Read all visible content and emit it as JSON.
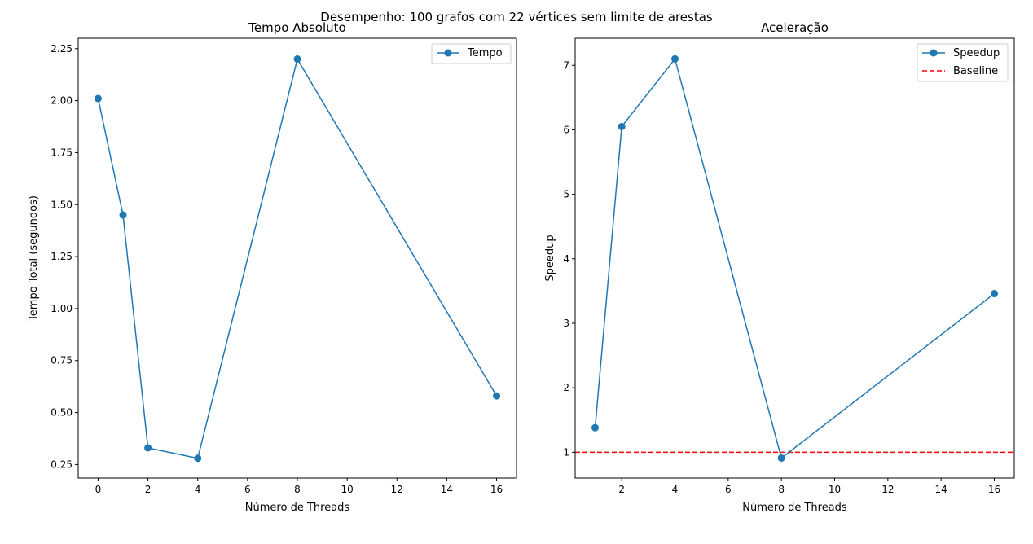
{
  "figure": {
    "suptitle": "Desempenho: 100 grafos com 22 vértices sem limite de arestas"
  },
  "colors": {
    "series": "#1f77b4",
    "baseline": "#ff0000",
    "axes": "#000000",
    "background": "#ffffff"
  },
  "chart_data": [
    {
      "type": "line",
      "title": "Tempo Absoluto",
      "xlabel": "Número de Threads",
      "ylabel": "Tempo Total (segundos)",
      "xlim": [
        -0.8,
        16.8
      ],
      "ylim": [
        0.185,
        2.3
      ],
      "xticks": [
        0,
        2,
        4,
        6,
        8,
        10,
        12,
        14,
        16
      ],
      "xtick_labels": [
        "0",
        "2",
        "4",
        "6",
        "8",
        "10",
        "12",
        "14",
        "16"
      ],
      "yticks": [
        0.25,
        0.5,
        0.75,
        1.0,
        1.25,
        1.5,
        1.75,
        2.0,
        2.25
      ],
      "ytick_labels": [
        "0.25",
        "0.50",
        "0.75",
        "1.00",
        "1.25",
        "1.50",
        "1.75",
        "2.00",
        "2.25"
      ],
      "grid": false,
      "legend_position": "top-right",
      "series": [
        {
          "name": "Tempo",
          "style": "solid-with-markers",
          "x": [
            0,
            1,
            2,
            4,
            8,
            16
          ],
          "y": [
            2.01,
            1.45,
            0.33,
            0.28,
            2.2,
            0.58
          ]
        }
      ]
    },
    {
      "type": "line",
      "title": "Aceleração",
      "xlabel": "Número de Threads",
      "ylabel": "Speedup",
      "xlim": [
        0.25,
        16.75
      ],
      "ylim": [
        0.6,
        7.42
      ],
      "xticks": [
        2,
        4,
        6,
        8,
        10,
        12,
        14,
        16
      ],
      "xtick_labels": [
        "2",
        "4",
        "6",
        "8",
        "10",
        "12",
        "14",
        "16"
      ],
      "yticks": [
        1,
        2,
        3,
        4,
        5,
        6,
        7
      ],
      "ytick_labels": [
        "1",
        "2",
        "3",
        "4",
        "5",
        "6",
        "7"
      ],
      "grid": false,
      "legend_position": "top-right",
      "series": [
        {
          "name": "Speedup",
          "style": "solid-with-markers",
          "x": [
            1,
            2,
            4,
            8,
            16
          ],
          "y": [
            1.38,
            6.05,
            7.1,
            0.91,
            3.46
          ]
        }
      ],
      "hlines": [
        {
          "name": "Baseline",
          "y": 1,
          "style": "dashed"
        }
      ]
    }
  ]
}
